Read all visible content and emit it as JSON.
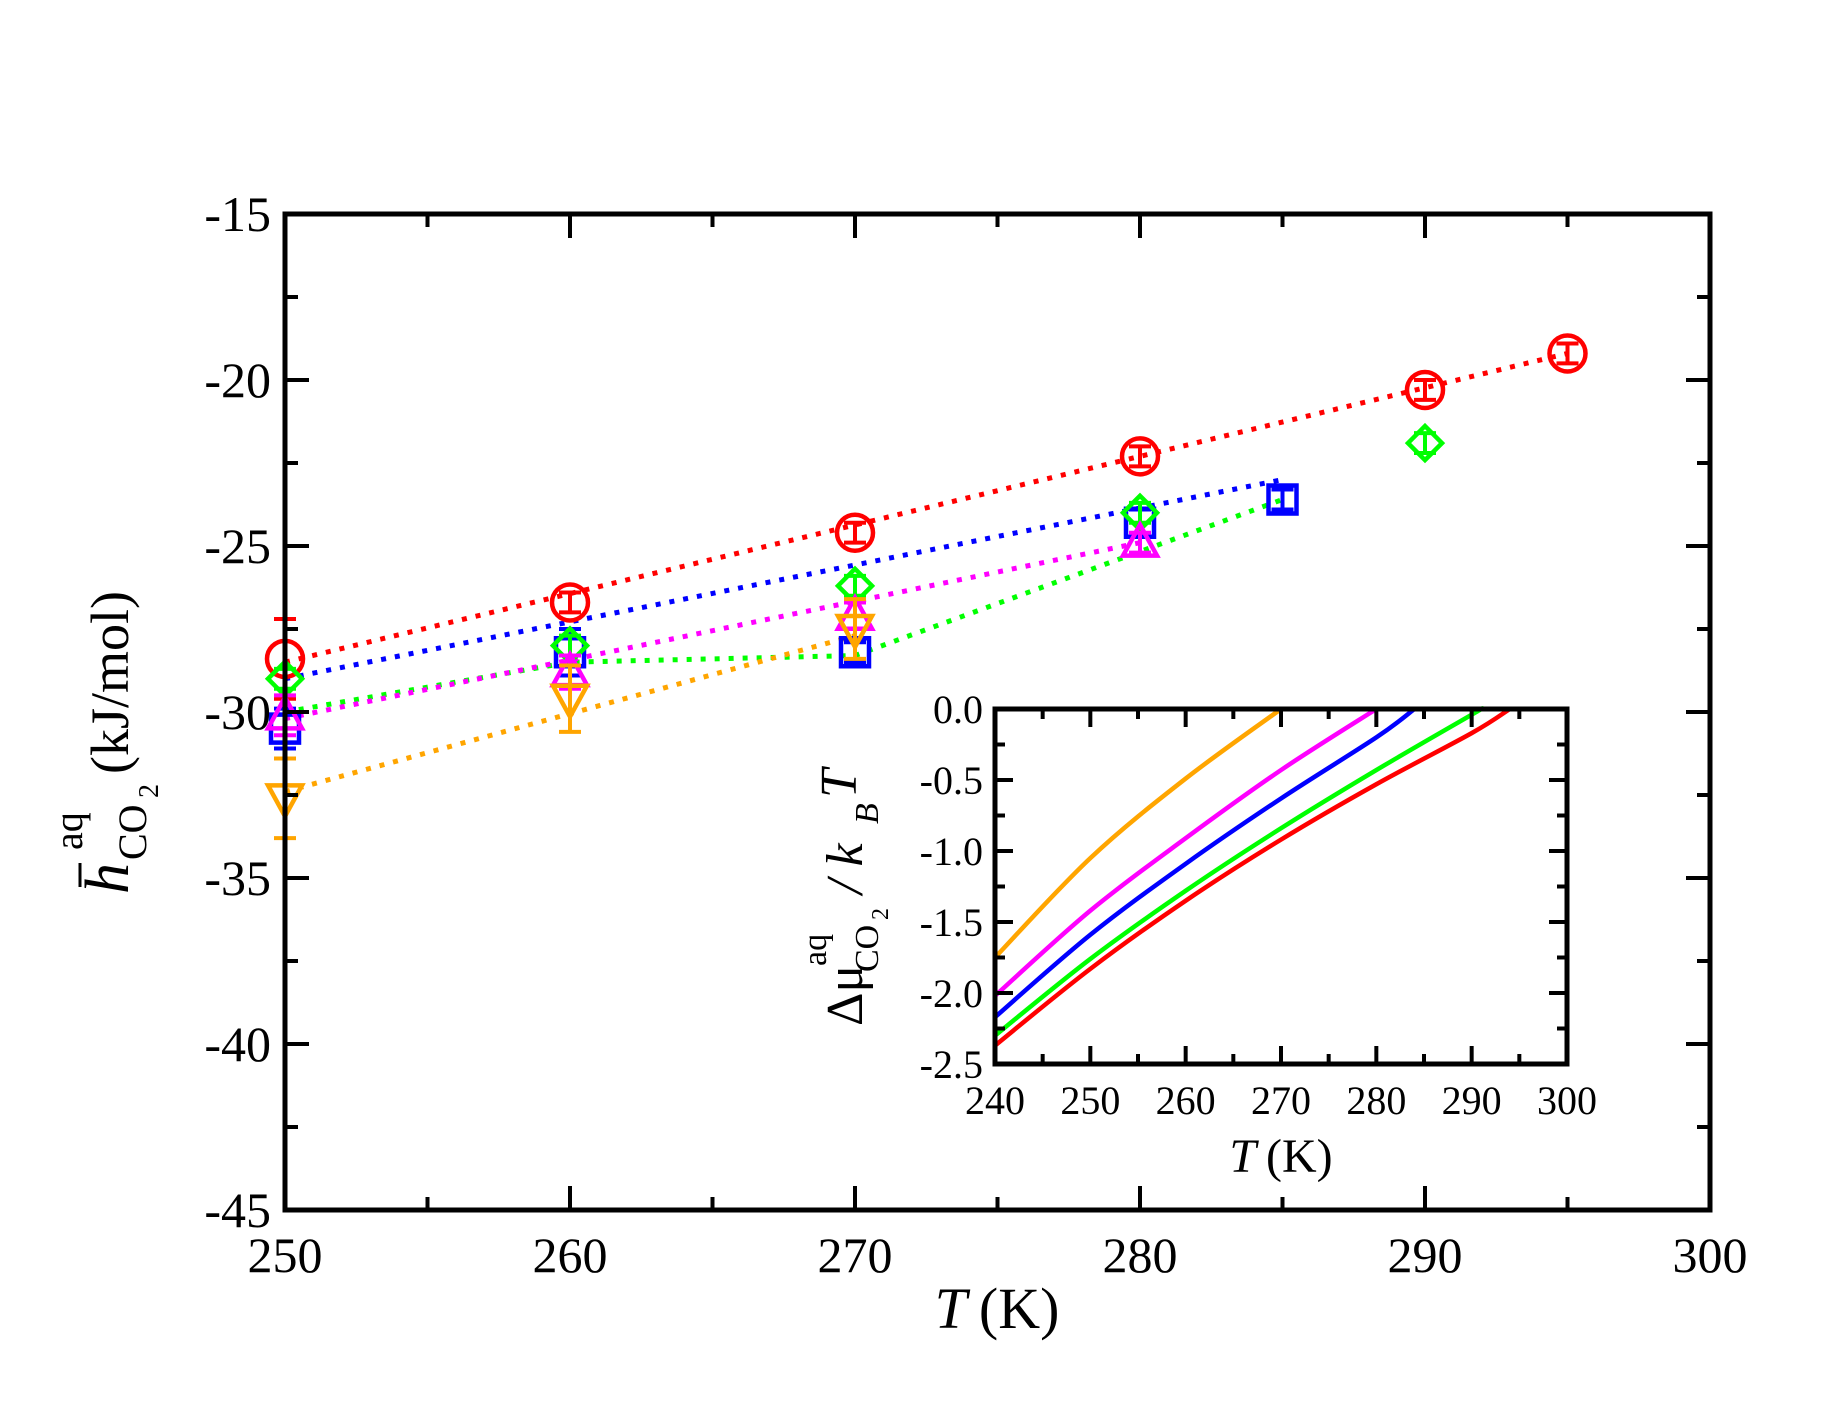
{
  "chart_data": [
    {
      "type": "scatter",
      "title": "",
      "xlabel_symbol": "T",
      "xlabel_unit": "(K)",
      "ylabel_symbol": "h",
      "ylabel_sup": "aq",
      "ylabel_sub": "CO",
      "ylabel_subsub": "2",
      "ylabel_unit": "(kJ/mol)",
      "xlim": [
        250,
        300
      ],
      "ylim": [
        -45,
        -15
      ],
      "xticks": [
        250,
        260,
        270,
        280,
        290,
        300
      ],
      "yticks": [
        -45,
        -40,
        -35,
        -30,
        -25,
        -20,
        -15
      ],
      "xtick_labels": [
        "250",
        "260",
        "270",
        "280",
        "290",
        "300"
      ],
      "ytick_labels": [
        "-45",
        "-40",
        "-35",
        "-30",
        "-25",
        "-20",
        "-15"
      ],
      "series": [
        {
          "name": "red circles",
          "marker": "circle",
          "color": "#ff0000",
          "x": [
            250,
            260,
            270,
            280,
            290,
            295
          ],
          "y": [
            -28.4,
            -26.7,
            -24.6,
            -22.3,
            -20.3,
            -19.2
          ],
          "err": [
            1.2,
            0.3,
            0.3,
            0.3,
            0.3,
            0.3
          ]
        },
        {
          "name": "blue squares",
          "marker": "square",
          "color": "#0000ff",
          "x": [
            250,
            260,
            270,
            280,
            285
          ],
          "y": [
            -30.5,
            -28.2,
            -28.2,
            -24.3,
            -23.6
          ],
          "err": [
            0.6,
            0.7,
            0.3,
            0.4,
            0.3
          ]
        },
        {
          "name": "green diamonds",
          "marker": "diamond",
          "color": "#00ff00",
          "x": [
            250,
            260,
            270,
            280,
            290
          ],
          "y": [
            -29.0,
            -28.0,
            -26.2,
            -24.0,
            -21.9
          ],
          "err": [
            0.3,
            0.3,
            0.3,
            0.3,
            0.3
          ]
        },
        {
          "name": "magenta triangles",
          "marker": "triangle-up",
          "color": "#ff00ff",
          "x": [
            250,
            260,
            270,
            280
          ],
          "y": [
            -30.1,
            -28.8,
            -27.1,
            -24.9
          ],
          "err": [
            0.6,
            0.5,
            0.4,
            0.3
          ]
        },
        {
          "name": "orange down triangles",
          "marker": "triangle-down",
          "color": "#ffa500",
          "x": [
            250,
            260,
            270
          ],
          "y": [
            -32.6,
            -29.6,
            -27.5
          ],
          "err": [
            1.2,
            1.0,
            0.9
          ]
        }
      ],
      "fit_lines": [
        {
          "color": "#ff0000",
          "x": [
            250,
            295
          ],
          "y": [
            -28.5,
            -19.2
          ]
        },
        {
          "color": "#0000ff",
          "x": [
            250,
            285
          ],
          "y": [
            -29.0,
            -23.0
          ]
        },
        {
          "color": "#00ff00",
          "x": [
            250,
            260,
            270,
            285
          ],
          "y": [
            -30.0,
            -28.5,
            -28.3,
            -23.6
          ]
        },
        {
          "color": "#ff00ff",
          "x": [
            250,
            280
          ],
          "y": [
            -30.2,
            -24.9
          ]
        },
        {
          "color": "#ffa500",
          "x": [
            250,
            270
          ],
          "y": [
            -32.4,
            -27.7
          ]
        }
      ]
    },
    {
      "type": "line",
      "title": "",
      "xlabel_symbol": "T",
      "xlabel_unit": "(K)",
      "ylabel_delta": "Δμ",
      "ylabel_sup": "aq",
      "ylabel_sub": "CO",
      "ylabel_subsub": "2",
      "ylabel_div": "/ k",
      "ylabel_kb_sub": "B",
      "ylabel_T": "T",
      "xlim": [
        240,
        300
      ],
      "ylim": [
        -2.5,
        0.0
      ],
      "xticks": [
        240,
        250,
        260,
        270,
        280,
        290,
        300
      ],
      "yticks": [
        -2.5,
        -2.0,
        -1.5,
        -1.0,
        -0.5,
        0.0
      ],
      "xtick_labels": [
        "240",
        "250",
        "260",
        "270",
        "280",
        "290",
        "300"
      ],
      "ytick_labels": [
        "-2.5",
        "-2.0",
        "-1.5",
        "-1.0",
        "-0.5",
        "0.0"
      ],
      "series": [
        {
          "name": "orange",
          "color": "#ffa500",
          "x": [
            240,
            250,
            260,
            270
          ],
          "y": [
            -1.75,
            -1.05,
            -0.49,
            0.0
          ]
        },
        {
          "name": "magenta",
          "color": "#ff00ff",
          "x": [
            240,
            250,
            260,
            270,
            280
          ],
          "y": [
            -2.02,
            -1.42,
            -0.91,
            -0.43,
            0.0
          ]
        },
        {
          "name": "blue",
          "color": "#0000ff",
          "x": [
            240,
            250,
            260,
            270,
            280,
            284
          ],
          "y": [
            -2.17,
            -1.59,
            -1.09,
            -0.63,
            -0.2,
            0.0
          ]
        },
        {
          "name": "green",
          "color": "#00ff00",
          "x": [
            240,
            250,
            260,
            270,
            280,
            290,
            291
          ],
          "y": [
            -2.3,
            -1.76,
            -1.28,
            -0.84,
            -0.43,
            -0.04,
            0.0
          ]
        },
        {
          "name": "red",
          "color": "#ff0000",
          "x": [
            240,
            250,
            260,
            270,
            280,
            290,
            294
          ],
          "y": [
            -2.37,
            -1.83,
            -1.35,
            -0.92,
            -0.53,
            -0.17,
            0.0
          ]
        }
      ]
    }
  ]
}
